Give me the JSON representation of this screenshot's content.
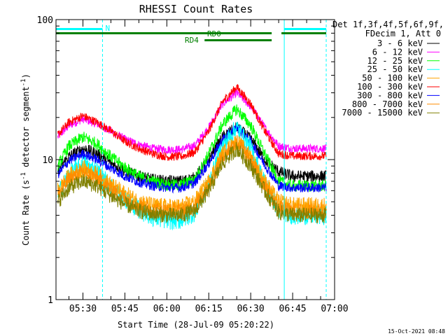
{
  "chart_data": {
    "type": "line",
    "title": "RHESSI Count Rates",
    "xlabel": "Start Time (28-Jul-09 05:20:22)",
    "ylabel_parts": [
      "Count Rate (s",
      "-1",
      " detector segment",
      "-1",
      ")"
    ],
    "yscale": "log",
    "ylim": [
      1,
      100
    ],
    "xlim": [
      "05:20:22",
      "07:00:00"
    ],
    "y_ticks": [
      {
        "value": 1,
        "label": "1"
      },
      {
        "value": 10,
        "label": "10"
      },
      {
        "value": 100,
        "label": "100"
      }
    ],
    "x_ticks": [
      {
        "value": "05:30",
        "label": "05:30"
      },
      {
        "value": "05:45",
        "label": "05:45"
      },
      {
        "value": "06:00",
        "label": "06:00"
      },
      {
        "value": "06:15",
        "label": "06:15"
      },
      {
        "value": "06:30",
        "label": "06:30"
      },
      {
        "value": "06:45",
        "label": "06:45"
      },
      {
        "value": "07:00",
        "label": "07:00"
      }
    ],
    "legend_header": [
      "Det 1f,3f,4f,5f,6f,9f,",
      "FDecim 1, Att 0"
    ],
    "legend_position": "right",
    "series": [
      {
        "name": "3 - 6 keV",
        "color": "#000000",
        "x": [
          "05:21",
          "05:25",
          "05:30",
          "05:35",
          "05:40",
          "05:45",
          "05:50",
          "05:55",
          "06:00",
          "06:05",
          "06:10",
          "06:15",
          "06:20",
          "06:25",
          "06:30",
          "06:35",
          "06:40",
          "06:45",
          "06:50",
          "06:55"
        ],
        "y": [
          8.5,
          10.5,
          12.0,
          11.0,
          9.5,
          8.3,
          7.6,
          7.2,
          7.0,
          7.0,
          7.4,
          10.0,
          14.5,
          17.0,
          14.0,
          10.0,
          8.2,
          7.6,
          7.6,
          7.6
        ]
      },
      {
        "name": "6 - 12 keV",
        "color": "#ff00ff",
        "x": [
          "05:21",
          "05:25",
          "05:30",
          "05:35",
          "05:40",
          "05:45",
          "05:50",
          "05:55",
          "06:00",
          "06:05",
          "06:10",
          "06:15",
          "06:20",
          "06:25",
          "06:30",
          "06:35",
          "06:40",
          "06:45",
          "06:50",
          "06:55"
        ],
        "y": [
          14.5,
          17.5,
          19.5,
          18.0,
          16.0,
          14.0,
          12.8,
          12.0,
          11.8,
          11.8,
          12.6,
          17.0,
          25.0,
          30.0,
          24.0,
          17.0,
          12.5,
          12.0,
          12.0,
          12.0
        ]
      },
      {
        "name": "12 - 25 keV",
        "color": "#00ff00",
        "x": [
          "05:21",
          "05:25",
          "05:30",
          "05:35",
          "05:40",
          "05:45",
          "05:50",
          "05:55",
          "06:00",
          "06:05",
          "06:10",
          "06:15",
          "06:20",
          "06:25",
          "06:30",
          "06:35",
          "06:40",
          "06:45",
          "06:50",
          "06:55"
        ],
        "y": [
          9.0,
          12.5,
          14.5,
          13.0,
          10.5,
          8.8,
          7.6,
          7.0,
          6.6,
          6.6,
          7.2,
          11.0,
          18.0,
          23.0,
          17.5,
          11.0,
          7.0,
          6.5,
          6.5,
          6.5
        ]
      },
      {
        "name": "25 - 50 keV",
        "color": "#00ffff",
        "x": [
          "05:21",
          "05:25",
          "05:30",
          "05:35",
          "05:40",
          "05:45",
          "05:50",
          "05:55",
          "06:00",
          "06:05",
          "06:10",
          "06:15",
          "06:20",
          "06:25",
          "06:30",
          "06:35",
          "06:40",
          "06:45",
          "06:50",
          "06:55"
        ],
        "y": [
          5.6,
          7.8,
          9.3,
          8.3,
          6.4,
          5.2,
          4.4,
          3.9,
          3.7,
          3.7,
          4.2,
          6.8,
          12.5,
          17.0,
          12.0,
          6.8,
          4.4,
          4.0,
          4.0,
          4.0
        ]
      },
      {
        "name": "50 - 100 keV",
        "color": "#ffa500",
        "x": [
          "05:21",
          "05:25",
          "05:30",
          "05:35",
          "05:40",
          "05:45",
          "05:50",
          "05:55",
          "06:00",
          "06:05",
          "06:10",
          "06:15",
          "06:20",
          "06:25",
          "06:30",
          "06:35",
          "06:40",
          "06:45",
          "06:50",
          "06:55"
        ],
        "y": [
          6.0,
          7.6,
          8.6,
          7.8,
          6.6,
          5.7,
          5.0,
          4.7,
          4.6,
          4.6,
          5.0,
          7.0,
          11.0,
          13.5,
          10.5,
          7.0,
          5.0,
          4.7,
          4.7,
          4.7
        ]
      },
      {
        "name": "100 - 300 keV",
        "color": "#ff0000",
        "x": [
          "05:21",
          "05:25",
          "05:30",
          "05:35",
          "05:40",
          "05:45",
          "05:50",
          "05:55",
          "06:00",
          "06:05",
          "06:10",
          "06:15",
          "06:20",
          "06:25",
          "06:30",
          "06:35",
          "06:40",
          "06:45",
          "06:50",
          "06:55"
        ],
        "y": [
          15.0,
          18.5,
          20.5,
          18.5,
          16.0,
          13.5,
          12.0,
          11.0,
          10.5,
          10.5,
          11.3,
          16.0,
          26.0,
          33.0,
          25.0,
          16.0,
          11.0,
          10.6,
          10.6,
          10.6
        ]
      },
      {
        "name": "300 - 800 keV",
        "color": "#0000ff",
        "x": [
          "05:21",
          "05:25",
          "05:30",
          "05:35",
          "05:40",
          "05:45",
          "05:50",
          "05:55",
          "06:00",
          "06:05",
          "06:10",
          "06:15",
          "06:20",
          "06:25",
          "06:30",
          "06:35",
          "06:40",
          "06:45",
          "06:50",
          "06:55"
        ],
        "y": [
          7.8,
          9.8,
          11.0,
          10.0,
          8.7,
          7.6,
          6.9,
          6.5,
          6.3,
          6.3,
          6.8,
          9.4,
          14.0,
          17.0,
          13.5,
          9.2,
          6.5,
          6.3,
          6.3,
          6.3
        ]
      },
      {
        "name": "800 - 7000 keV",
        "color": "#ff8c00",
        "x": [
          "05:21",
          "05:25",
          "05:30",
          "05:35",
          "05:40",
          "05:45",
          "05:50",
          "05:55",
          "06:00",
          "06:05",
          "06:10",
          "06:15",
          "06:20",
          "06:25",
          "06:30",
          "06:35",
          "06:40",
          "06:45",
          "06:50",
          "06:55"
        ],
        "y": [
          5.6,
          7.2,
          8.2,
          7.4,
          6.2,
          5.3,
          4.7,
          4.4,
          4.3,
          4.3,
          4.6,
          6.5,
          10.5,
          13.5,
          10.0,
          6.5,
          4.5,
          4.3,
          4.3,
          4.3
        ]
      },
      {
        "name": "7000 - 15000 keV",
        "color": "#808000",
        "x": [
          "05:21",
          "05:25",
          "05:30",
          "05:35",
          "05:40",
          "05:45",
          "05:50",
          "05:55",
          "06:00",
          "06:05",
          "06:10",
          "06:15",
          "06:20",
          "06:25",
          "06:30",
          "06:35",
          "06:40",
          "06:45",
          "06:50",
          "06:55"
        ],
        "y": [
          5.0,
          6.3,
          7.0,
          6.5,
          5.5,
          4.8,
          4.3,
          4.1,
          4.0,
          4.0,
          4.3,
          6.0,
          9.5,
          12.0,
          9.0,
          6.0,
          4.2,
          4.0,
          4.0,
          4.0
        ]
      }
    ],
    "annotations": {
      "night_label": "N",
      "night_intervals": [
        [
          "05:20:22",
          "05:37:00"
        ],
        [
          "06:42:00",
          "06:57:00"
        ]
      ],
      "night_color": "#00ffff",
      "rd0_label": "RD0",
      "rd0_intervals": [
        [
          "05:20:22",
          "06:37:30"
        ],
        [
          "06:41:00",
          "06:57:00"
        ]
      ],
      "rd4_label": "RD4",
      "rd4_intervals": [
        [
          "06:13:30",
          "06:37:30"
        ]
      ],
      "rd_color": "#008000",
      "saa_solid_lines": [
        "05:20:22",
        "06:42:00"
      ],
      "saa_dashed_lines": [
        "05:37:00",
        "06:57:00"
      ]
    },
    "grid": false
  },
  "footer": {
    "timestamp": "15-Oct-2021 08:48"
  }
}
